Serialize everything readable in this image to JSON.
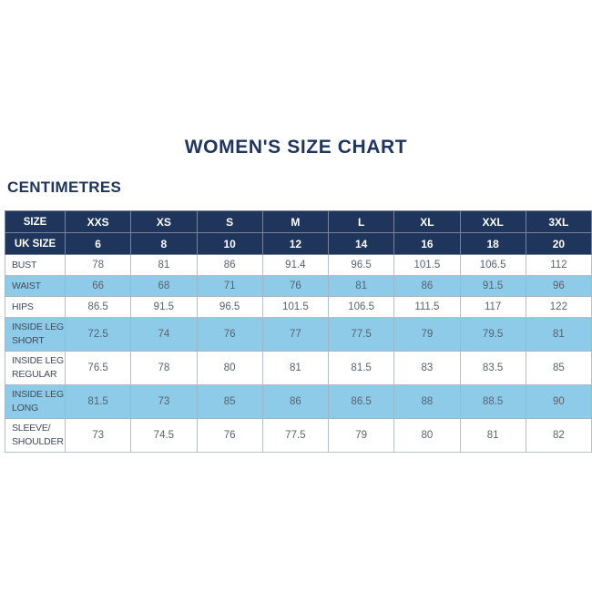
{
  "title": "WOMEN'S SIZE CHART",
  "units_label": "CENTIMETRES",
  "colors": {
    "navy_header": "#20355c",
    "title_text": "#1e3461",
    "highlight_blue": "#8ecbe9",
    "data_text": "#57636d",
    "grid_line": "#b6bfc7"
  },
  "chart_data": {
    "type": "table",
    "title": "WOMEN'S SIZE CHART",
    "units": "CENTIMETRES",
    "layout": {
      "zebra_highlight": "every second body row light blue",
      "header_rows_background": "navy with white bold text"
    },
    "header_rows": [
      {
        "label": "SIZE",
        "values": [
          "XXS",
          "XS",
          "S",
          "M",
          "L",
          "XL",
          "XXL",
          "3XL"
        ]
      },
      {
        "label": "UK SIZE",
        "values": [
          "6",
          "8",
          "10",
          "12",
          "14",
          "16",
          "18",
          "20"
        ]
      }
    ],
    "body_rows": [
      {
        "label": "BUST",
        "values": [
          78,
          81,
          86,
          91.4,
          96.5,
          101.5,
          106.5,
          112
        ]
      },
      {
        "label": "WAIST",
        "values": [
          66,
          68,
          71,
          76,
          81,
          86,
          91.5,
          96
        ]
      },
      {
        "label": "HIPS",
        "values": [
          86.5,
          91.5,
          96.5,
          101.5,
          106.5,
          111.5,
          117,
          122
        ]
      },
      {
        "label": "INSIDE LEG\nSHORT",
        "values": [
          72.5,
          74,
          76,
          77,
          77.5,
          79,
          79.5,
          81
        ]
      },
      {
        "label": "INSIDE LEG\nREGULAR",
        "values": [
          76.5,
          78,
          80,
          81,
          81.5,
          83,
          83.5,
          85
        ]
      },
      {
        "label": "INSIDE LEG\nLONG",
        "values": [
          81.5,
          73,
          85,
          86,
          86.5,
          88,
          88.5,
          90
        ]
      },
      {
        "label": "SLEEVE/\nSHOULDER",
        "values": [
          73,
          74.5,
          76,
          77.5,
          79,
          80,
          81,
          82
        ]
      }
    ]
  }
}
